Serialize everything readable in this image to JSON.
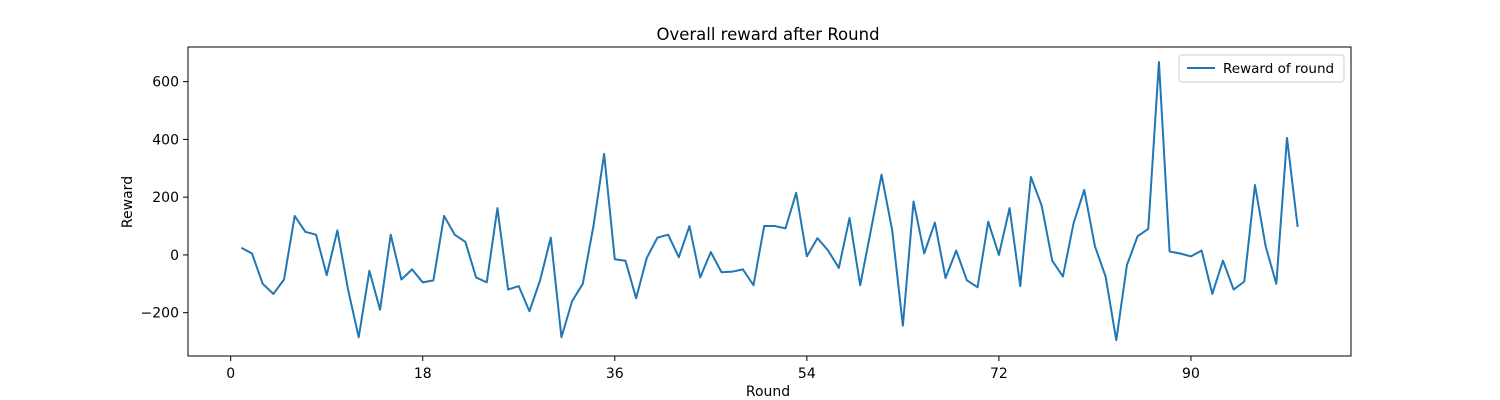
{
  "chart_data": {
    "type": "line",
    "title": "Overall reward after Round",
    "xlabel": "Round",
    "ylabel": "Reward",
    "xlim": [
      -4,
      105
    ],
    "ylim": [
      -350,
      720
    ],
    "xticks": [
      0,
      18,
      36,
      54,
      72,
      90
    ],
    "yticks": [
      -200,
      0,
      200,
      400,
      600
    ],
    "grid": false,
    "legend_position": "top-right",
    "series": [
      {
        "name": "Reward of round",
        "color": "#1f77b4",
        "x": [
          1,
          2,
          3,
          4,
          5,
          6,
          7,
          8,
          9,
          10,
          11,
          12,
          13,
          14,
          15,
          16,
          17,
          18,
          19,
          20,
          21,
          22,
          23,
          24,
          25,
          26,
          27,
          28,
          29,
          30,
          31,
          32,
          33,
          34,
          35,
          36,
          37,
          38,
          39,
          40,
          41,
          42,
          43,
          44,
          45,
          46,
          47,
          48,
          49,
          50,
          51,
          52,
          53,
          54,
          55,
          56,
          57,
          58,
          59,
          60,
          61,
          62,
          63,
          64,
          65,
          66,
          67,
          68,
          69,
          70,
          71,
          72,
          73,
          74,
          75,
          76,
          77,
          78,
          79,
          80,
          81,
          82,
          83,
          84,
          85,
          86,
          87,
          88,
          89,
          90,
          91,
          92,
          93,
          94,
          95,
          96,
          97,
          98,
          99,
          100
        ],
        "y": [
          25,
          5,
          -100,
          -135,
          -85,
          135,
          80,
          70,
          -70,
          85,
          -120,
          -285,
          -55,
          -190,
          70,
          -85,
          -50,
          -95,
          -88,
          135,
          70,
          45,
          -78,
          -95,
          162,
          -120,
          -108,
          -195,
          -88,
          60,
          -285,
          -160,
          -100,
          100,
          350,
          -15,
          -20,
          -150,
          -10,
          60,
          70,
          -8,
          100,
          -78,
          10,
          -60,
          -58,
          -50,
          -105,
          100,
          100,
          92,
          215,
          -5,
          58,
          15,
          -45,
          128,
          -105,
          85,
          278,
          85,
          -245,
          185,
          5,
          112,
          -80,
          15,
          -88,
          -112,
          115,
          0,
          162,
          -108,
          270,
          172,
          -20,
          -75,
          110,
          225,
          30,
          -75,
          -295,
          -35,
          65,
          90,
          668,
          12,
          5,
          -5,
          15,
          -135,
          -20,
          -120,
          -92,
          242,
          30,
          -100,
          405,
          97
        ]
      }
    ]
  }
}
